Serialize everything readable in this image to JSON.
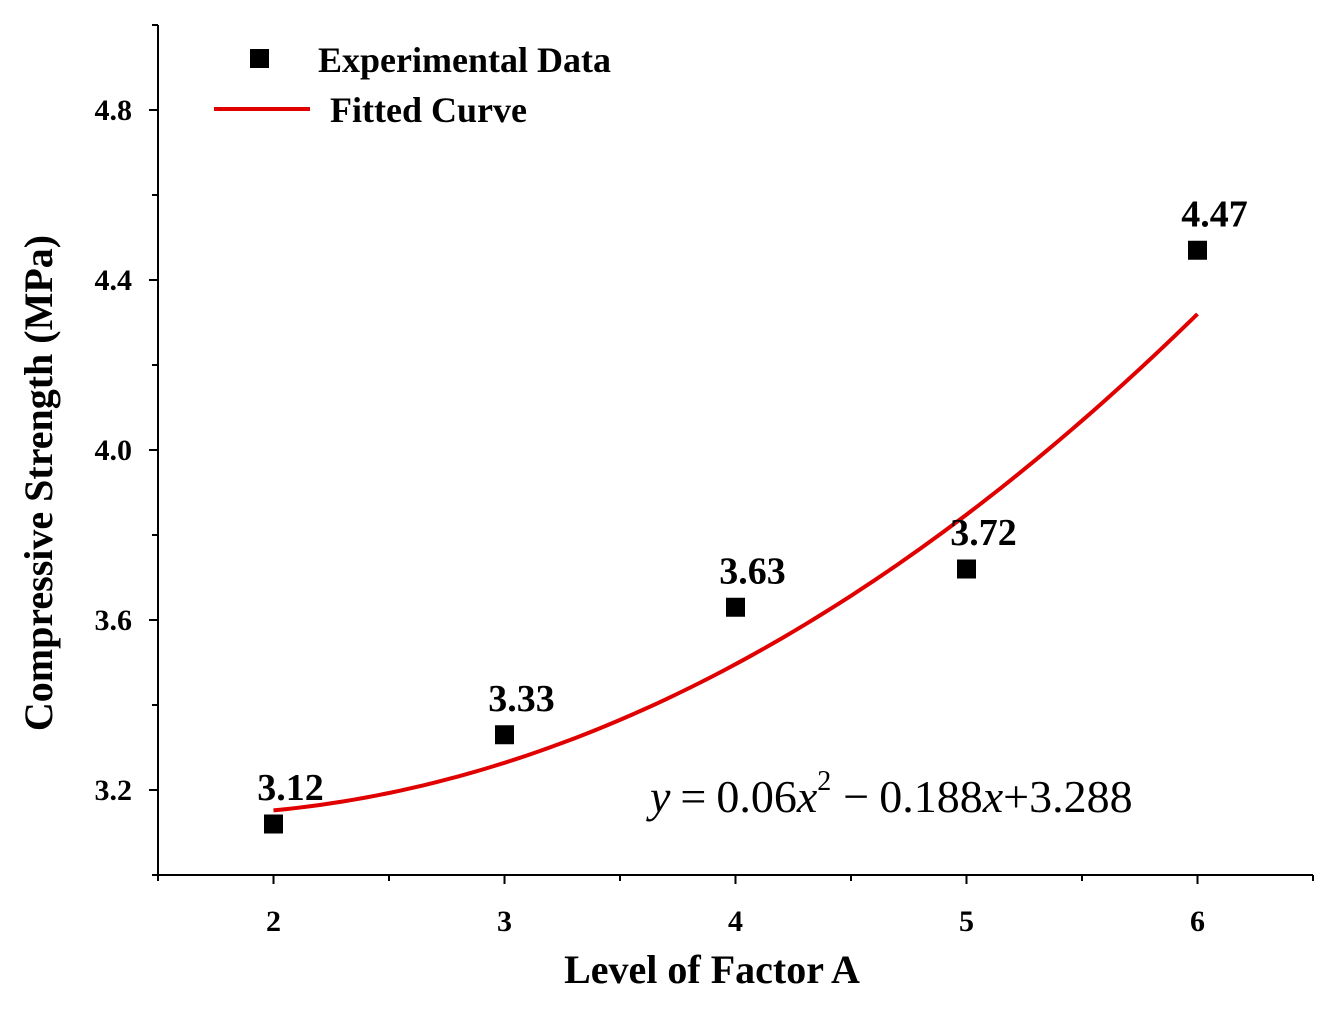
{
  "chart_data": {
    "type": "scatter",
    "title": "",
    "xlabel": "Level of Factor A",
    "ylabel": "Compressive Strength (MPa)",
    "xlim": [
      1.5,
      6.5
    ],
    "ylim": [
      3.0,
      5.0
    ],
    "x_ticks": [
      2,
      3,
      4,
      5,
      6
    ],
    "y_ticks": [
      3.2,
      3.6,
      4.0,
      4.4,
      4.8
    ],
    "x_tick_labels": [
      "2",
      "3",
      "4",
      "5",
      "6"
    ],
    "y_tick_labels": [
      "3.2",
      "3.6",
      "4.0",
      "4.4",
      "4.8"
    ],
    "grid": false,
    "legend_position": "top-left",
    "series": [
      {
        "name": "Experimental Data",
        "kind": "scatter",
        "marker": "square",
        "color": "#000000",
        "x": [
          2,
          3,
          4,
          5,
          6
        ],
        "y": [
          3.12,
          3.33,
          3.63,
          3.72,
          4.47
        ],
        "labels": [
          "3.12",
          "3.33",
          "3.63",
          "3.72",
          "4.47"
        ]
      },
      {
        "name": "Fitted Curve",
        "kind": "line",
        "color": "#e00000",
        "equation": {
          "a": 0.06,
          "b": -0.188,
          "c": 3.288
        },
        "x_range": [
          2,
          6
        ]
      }
    ],
    "annotation": {
      "y_var": "y",
      "eq_sign": "=",
      "coef_a": "0.06",
      "x_var": "x",
      "power": "2",
      "minus": "−",
      "coef_b": "0.188",
      "plus": "+",
      "coef_c": "3.288"
    }
  }
}
